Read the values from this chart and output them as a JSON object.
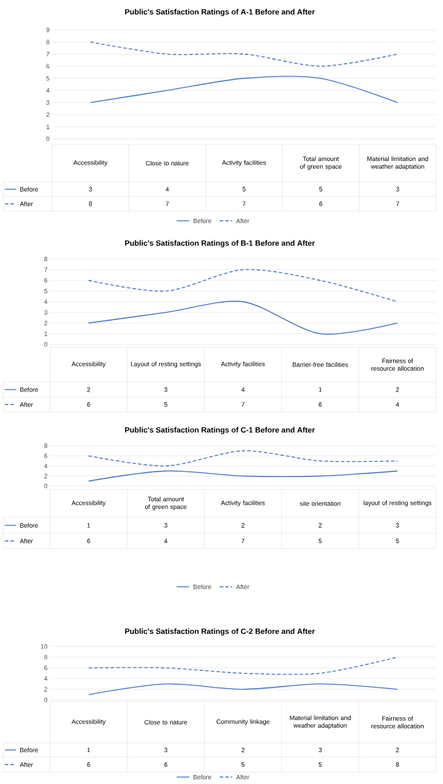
{
  "chart_data": [
    {
      "type": "line",
      "title": "Public's Satisfaction Ratings of A-1 Before and After",
      "categories": [
        "Accessibility",
        "Close to nature",
        "Activity facilities",
        "Total amount of green space",
        "Material limitation and weather adaptation"
      ],
      "series": [
        {
          "name": "Before",
          "color": "#4472c4",
          "line_style": "solid",
          "values": [
            3,
            4,
            5,
            5,
            3
          ]
        },
        {
          "name": "After",
          "color": "#4472c4",
          "line_style": "dashed",
          "values": [
            8,
            7,
            7,
            6,
            7
          ]
        }
      ],
      "ylim": [
        0,
        9
      ],
      "yticks": [
        0,
        1,
        2,
        3,
        4,
        5,
        6,
        7,
        8,
        9
      ],
      "grid": "y",
      "legend": "bottom",
      "data_labels": true
    },
    {
      "type": "line",
      "title": "Public's Satisfaction Ratings of B-1 Before and After",
      "categories": [
        "Accessibility",
        "Layout of resting settings",
        "Activity facilities",
        "Barrier-free facilities",
        "Fairness of resource allocation"
      ],
      "series": [
        {
          "name": "Before",
          "color": "#4472c4",
          "line_style": "solid",
          "values": [
            2,
            3,
            4,
            1,
            2
          ]
        },
        {
          "name": "After",
          "color": "#4472c4",
          "line_style": "dashed",
          "values": [
            6,
            5,
            7,
            6,
            4
          ]
        }
      ],
      "ylim": [
        0,
        8
      ],
      "yticks": [
        0,
        1,
        2,
        3,
        4,
        5,
        6,
        7,
        8
      ],
      "grid": "y",
      "legend": "left",
      "data_labels": true
    },
    {
      "type": "line",
      "title": "Public's Satisfaction Ratings of C-1 Before and After",
      "categories": [
        "Accessibility",
        "Total amount of green space",
        "Activity facilities",
        "site orientation",
        "layout of resting settings"
      ],
      "series": [
        {
          "name": "Before",
          "color": "#4472c4",
          "line_style": "solid",
          "values": [
            1,
            3,
            2,
            2,
            3
          ]
        },
        {
          "name": "After",
          "color": "#4472c4",
          "line_style": "dashed",
          "values": [
            6,
            4,
            7,
            5,
            5
          ]
        }
      ],
      "ylim": [
        0,
        8
      ],
      "yticks": [
        0,
        2,
        4,
        6,
        8
      ],
      "grid": "y",
      "legend": "bottom",
      "data_labels": true
    },
    {
      "type": "line",
      "title": "Public's Satisfaction Ratings of C-2 Before and After",
      "categories": [
        "Accessibility",
        "Close to nature",
        "Community linkage",
        "Material limitation and weather adaptation",
        "Fairness of resource allocation"
      ],
      "series": [
        {
          "name": "Before",
          "color": "#4472c4",
          "line_style": "solid",
          "values": [
            1,
            3,
            2,
            3,
            2
          ]
        },
        {
          "name": "After",
          "color": "#4472c4",
          "line_style": "dashed",
          "values": [
            6,
            6,
            5,
            5,
            8
          ]
        }
      ],
      "ylim": [
        0,
        10
      ],
      "yticks": [
        0,
        2,
        4,
        6,
        8,
        10
      ],
      "grid": "y",
      "legend": "bottom",
      "data_labels": true
    }
  ]
}
